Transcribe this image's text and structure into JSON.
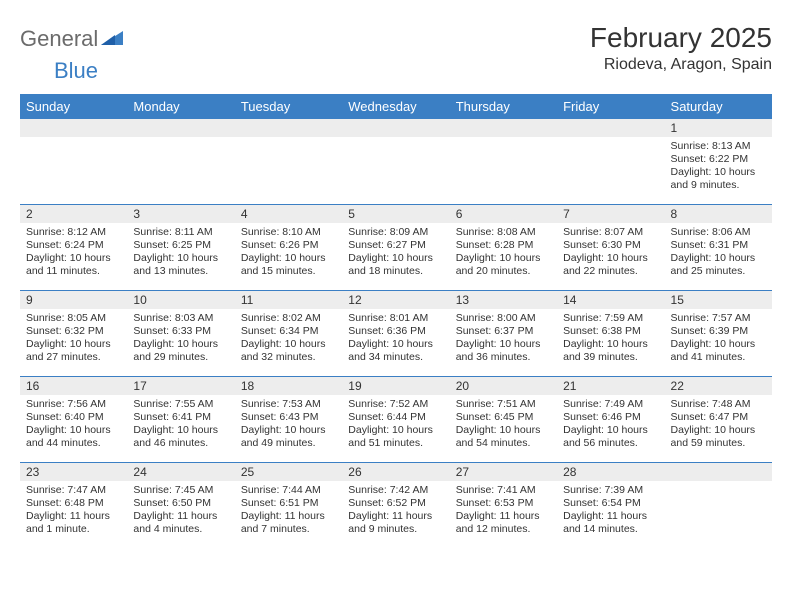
{
  "brand": {
    "part1": "General",
    "part2": "Blue"
  },
  "header": {
    "title": "February 2025",
    "location": "Riodeva, Aragon, Spain"
  },
  "colors": {
    "accent": "#3b7fc4",
    "header_row_bg": "#ededed",
    "text": "#333333",
    "bg": "#ffffff"
  },
  "weekdays": [
    "Sunday",
    "Monday",
    "Tuesday",
    "Wednesday",
    "Thursday",
    "Friday",
    "Saturday"
  ],
  "weeks": [
    [
      null,
      null,
      null,
      null,
      null,
      null,
      {
        "n": "1",
        "sunrise": "8:13 AM",
        "sunset": "6:22 PM",
        "daylight": "10 hours and 9 minutes."
      }
    ],
    [
      {
        "n": "2",
        "sunrise": "8:12 AM",
        "sunset": "6:24 PM",
        "daylight": "10 hours and 11 minutes."
      },
      {
        "n": "3",
        "sunrise": "8:11 AM",
        "sunset": "6:25 PM",
        "daylight": "10 hours and 13 minutes."
      },
      {
        "n": "4",
        "sunrise": "8:10 AM",
        "sunset": "6:26 PM",
        "daylight": "10 hours and 15 minutes."
      },
      {
        "n": "5",
        "sunrise": "8:09 AM",
        "sunset": "6:27 PM",
        "daylight": "10 hours and 18 minutes."
      },
      {
        "n": "6",
        "sunrise": "8:08 AM",
        "sunset": "6:28 PM",
        "daylight": "10 hours and 20 minutes."
      },
      {
        "n": "7",
        "sunrise": "8:07 AM",
        "sunset": "6:30 PM",
        "daylight": "10 hours and 22 minutes."
      },
      {
        "n": "8",
        "sunrise": "8:06 AM",
        "sunset": "6:31 PM",
        "daylight": "10 hours and 25 minutes."
      }
    ],
    [
      {
        "n": "9",
        "sunrise": "8:05 AM",
        "sunset": "6:32 PM",
        "daylight": "10 hours and 27 minutes."
      },
      {
        "n": "10",
        "sunrise": "8:03 AM",
        "sunset": "6:33 PM",
        "daylight": "10 hours and 29 minutes."
      },
      {
        "n": "11",
        "sunrise": "8:02 AM",
        "sunset": "6:34 PM",
        "daylight": "10 hours and 32 minutes."
      },
      {
        "n": "12",
        "sunrise": "8:01 AM",
        "sunset": "6:36 PM",
        "daylight": "10 hours and 34 minutes."
      },
      {
        "n": "13",
        "sunrise": "8:00 AM",
        "sunset": "6:37 PM",
        "daylight": "10 hours and 36 minutes."
      },
      {
        "n": "14",
        "sunrise": "7:59 AM",
        "sunset": "6:38 PM",
        "daylight": "10 hours and 39 minutes."
      },
      {
        "n": "15",
        "sunrise": "7:57 AM",
        "sunset": "6:39 PM",
        "daylight": "10 hours and 41 minutes."
      }
    ],
    [
      {
        "n": "16",
        "sunrise": "7:56 AM",
        "sunset": "6:40 PM",
        "daylight": "10 hours and 44 minutes."
      },
      {
        "n": "17",
        "sunrise": "7:55 AM",
        "sunset": "6:41 PM",
        "daylight": "10 hours and 46 minutes."
      },
      {
        "n": "18",
        "sunrise": "7:53 AM",
        "sunset": "6:43 PM",
        "daylight": "10 hours and 49 minutes."
      },
      {
        "n": "19",
        "sunrise": "7:52 AM",
        "sunset": "6:44 PM",
        "daylight": "10 hours and 51 minutes."
      },
      {
        "n": "20",
        "sunrise": "7:51 AM",
        "sunset": "6:45 PM",
        "daylight": "10 hours and 54 minutes."
      },
      {
        "n": "21",
        "sunrise": "7:49 AM",
        "sunset": "6:46 PM",
        "daylight": "10 hours and 56 minutes."
      },
      {
        "n": "22",
        "sunrise": "7:48 AM",
        "sunset": "6:47 PM",
        "daylight": "10 hours and 59 minutes."
      }
    ],
    [
      {
        "n": "23",
        "sunrise": "7:47 AM",
        "sunset": "6:48 PM",
        "daylight": "11 hours and 1 minute."
      },
      {
        "n": "24",
        "sunrise": "7:45 AM",
        "sunset": "6:50 PM",
        "daylight": "11 hours and 4 minutes."
      },
      {
        "n": "25",
        "sunrise": "7:44 AM",
        "sunset": "6:51 PM",
        "daylight": "11 hours and 7 minutes."
      },
      {
        "n": "26",
        "sunrise": "7:42 AM",
        "sunset": "6:52 PM",
        "daylight": "11 hours and 9 minutes."
      },
      {
        "n": "27",
        "sunrise": "7:41 AM",
        "sunset": "6:53 PM",
        "daylight": "11 hours and 12 minutes."
      },
      {
        "n": "28",
        "sunrise": "7:39 AM",
        "sunset": "6:54 PM",
        "daylight": "11 hours and 14 minutes."
      },
      null
    ]
  ],
  "labels": {
    "sunrise": "Sunrise:",
    "sunset": "Sunset:",
    "daylight": "Daylight:"
  }
}
